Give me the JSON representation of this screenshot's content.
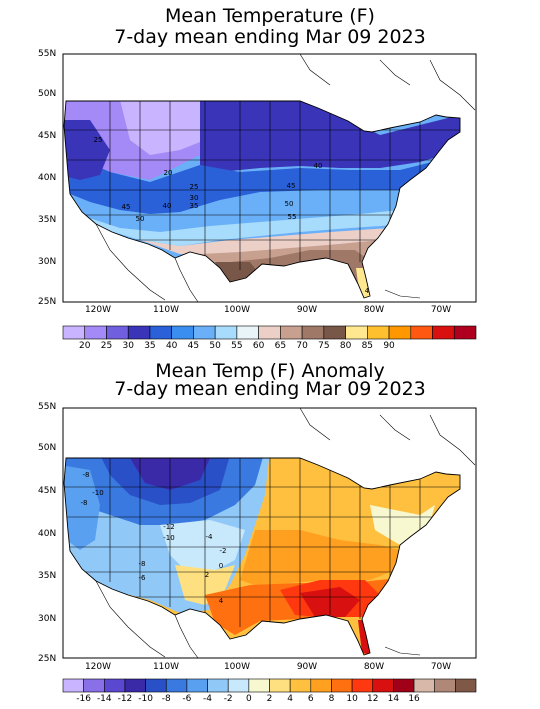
{
  "maps": [
    {
      "title_line1": "Mean Temperature (F)",
      "title_line2": "7-day mean ending Mar 09 2023",
      "lat_labels": [
        "55N",
        "50N",
        "45N",
        "40N",
        "35N",
        "30N",
        "25N"
      ],
      "lon_labels": [
        "120W",
        "110W",
        "100W",
        "90W",
        "80W",
        "70W"
      ],
      "contour_labels": [
        "25",
        "20",
        "25",
        "30",
        "35",
        "40",
        "45",
        "50",
        "40",
        "45",
        "50",
        "55",
        "4"
      ],
      "colorbar": {
        "colors": [
          "#c8b4ff",
          "#a48af7",
          "#7060e0",
          "#3a34b8",
          "#2a60d8",
          "#3a8ef0",
          "#6ab0f8",
          "#a8dcfc",
          "#e8f4f8",
          "#ecd0c8",
          "#c8a090",
          "#a07868",
          "#785648",
          "#ffe890",
          "#ffc030",
          "#ff9800",
          "#ff5810",
          "#d81010",
          "#b00020"
        ],
        "labels": [
          "20",
          "25",
          "30",
          "35",
          "40",
          "45",
          "50",
          "55",
          "60",
          "65",
          "70",
          "75",
          "80",
          "85",
          "90"
        ]
      }
    },
    {
      "title_line1": "Mean Temp (F) Anomaly",
      "title_line2": "7-day mean ending Mar 09 2023",
      "lat_labels": [
        "55N",
        "50N",
        "45N",
        "40N",
        "35N",
        "30N",
        "25N"
      ],
      "lon_labels": [
        "120W",
        "110W",
        "100W",
        "90W",
        "80W",
        "70W"
      ],
      "contour_labels": [
        "-8",
        "-10",
        "-8",
        "-12",
        "-10",
        "-4",
        "-2",
        "-8",
        "-6",
        "0",
        "2",
        "4"
      ],
      "colorbar": {
        "colors": [
          "#c8b4ff",
          "#8a70e8",
          "#5a48d0",
          "#3a2aa8",
          "#2a50c8",
          "#3a7ae0",
          "#5aa0f0",
          "#90c8f8",
          "#c8e8fc",
          "#f8f8d0",
          "#ffe080",
          "#ffc040",
          "#ffa020",
          "#ff7010",
          "#ff3810",
          "#d81010",
          "#a00018",
          "#d8b8a8",
          "#b08878",
          "#805848"
        ],
        "labels": [
          "-16",
          "-14",
          "-12",
          "-10",
          "-8",
          "-6",
          "-4",
          "-2",
          "0",
          "2",
          "4",
          "6",
          "8",
          "10",
          "12",
          "14",
          "16"
        ]
      }
    }
  ]
}
